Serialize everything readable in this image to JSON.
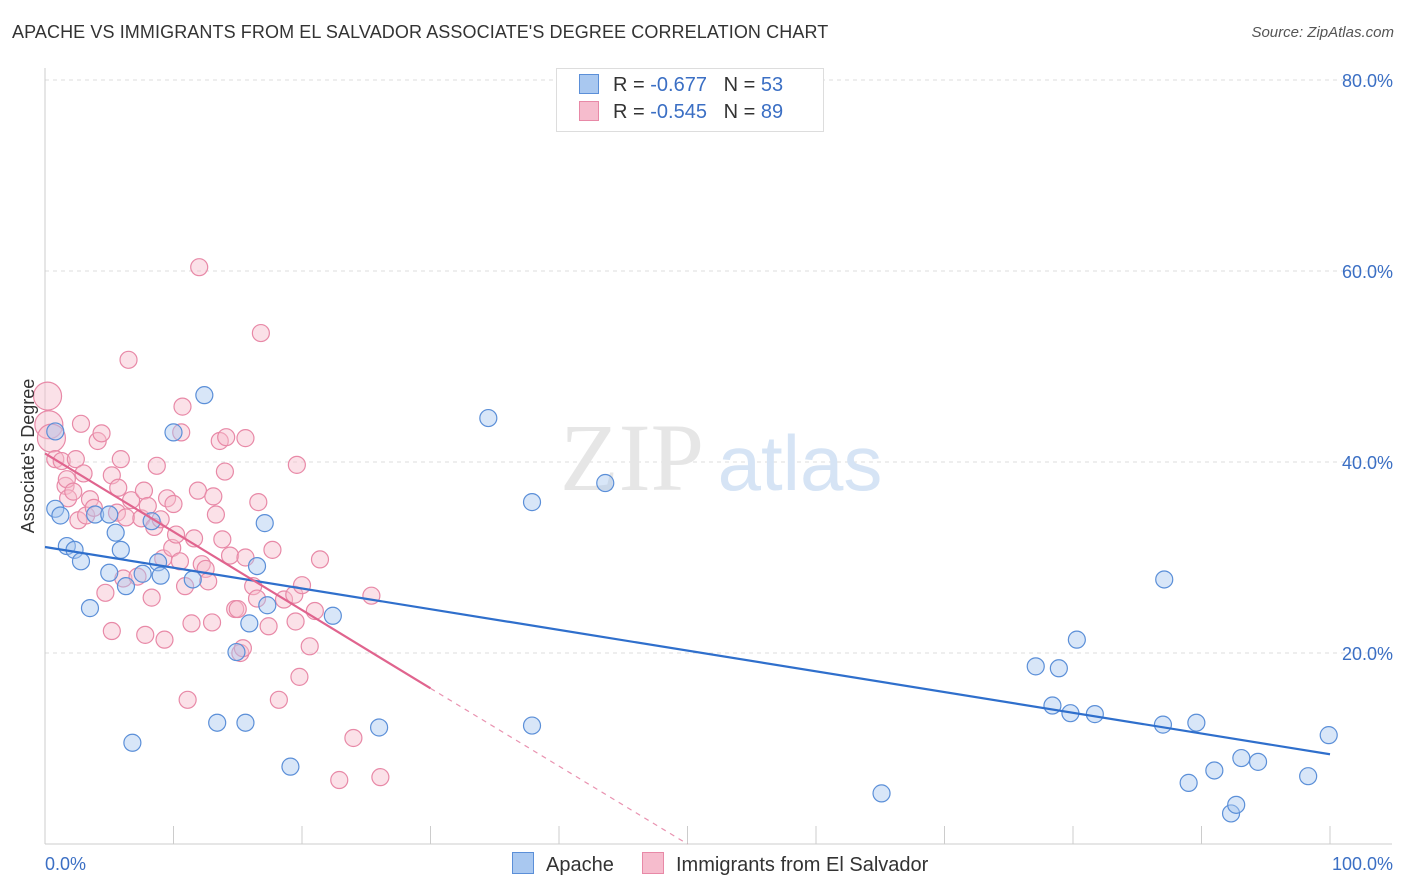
{
  "header": {
    "title": "APACHE VS IMMIGRANTS FROM EL SALVADOR ASSOCIATE'S DEGREE CORRELATION CHART",
    "source": "Source: ZipAtlas.com"
  },
  "watermark": {
    "zip": "ZIP",
    "atlas": "atlas"
  },
  "legend": {
    "rows": [
      {
        "r_label": "R =",
        "r_value": "-0.677",
        "n_label": "N =",
        "n_value": "53"
      },
      {
        "r_label": "R =",
        "r_value": "-0.545",
        "n_label": "N =",
        "n_value": "89"
      }
    ]
  },
  "colors": {
    "apache_fill": "#a9c8f0",
    "apache_stroke": "#5b8fd8",
    "apache_line": "#2f6fcc",
    "salvador_fill": "#f6bccd",
    "salvador_stroke": "#e889a7",
    "salvador_line": "#e0648e",
    "axis_label": "#3b6fc4",
    "grid": "#dddddd"
  },
  "chart_data": {
    "type": "scatter",
    "ylabel": "Associate's Degree",
    "xlim": [
      0,
      100
    ],
    "ylim": [
      0,
      80
    ],
    "x_tick_labels": [
      "0.0%",
      "100.0%"
    ],
    "y_ticks": [
      20,
      40,
      60,
      80
    ],
    "y_tick_labels": [
      "20.0%",
      "40.0%",
      "60.0%",
      "80.0%"
    ],
    "grid": "horizontal dashed",
    "legend_placement": "top-center",
    "series": [
      {
        "name": "Apache",
        "points": [
          [
            0.8,
            43.2
          ],
          [
            0.8,
            35.1
          ],
          [
            1.2,
            34.4
          ],
          [
            1.7,
            31.2
          ],
          [
            2.3,
            30.8
          ],
          [
            2.8,
            29.6
          ],
          [
            3.5,
            24.7
          ],
          [
            3.9,
            34.5
          ],
          [
            5.0,
            34.5
          ],
          [
            5.0,
            28.4
          ],
          [
            5.5,
            32.6
          ],
          [
            5.9,
            30.8
          ],
          [
            6.3,
            27.0
          ],
          [
            6.8,
            10.6
          ],
          [
            7.6,
            28.3
          ],
          [
            8.3,
            33.8
          ],
          [
            8.8,
            29.5
          ],
          [
            9.0,
            28.1
          ],
          [
            10.0,
            43.1
          ],
          [
            11.5,
            27.7
          ],
          [
            12.4,
            47.0
          ],
          [
            13.4,
            12.7
          ],
          [
            14.9,
            20.1
          ],
          [
            15.6,
            12.7
          ],
          [
            15.9,
            23.1
          ],
          [
            16.5,
            29.1
          ],
          [
            17.1,
            33.6
          ],
          [
            17.3,
            25.0
          ],
          [
            19.1,
            8.1
          ],
          [
            22.4,
            23.9
          ],
          [
            26.0,
            12.2
          ],
          [
            34.5,
            44.6
          ],
          [
            37.9,
            35.8
          ],
          [
            37.9,
            12.4
          ],
          [
            43.6,
            37.8
          ],
          [
            65.1,
            5.3
          ],
          [
            77.1,
            18.6
          ],
          [
            78.4,
            14.5
          ],
          [
            78.9,
            18.4
          ],
          [
            79.8,
            13.7
          ],
          [
            80.3,
            21.4
          ],
          [
            81.7,
            13.6
          ],
          [
            87.1,
            27.7
          ],
          [
            87.0,
            12.5
          ],
          [
            89.0,
            6.4
          ],
          [
            89.6,
            12.7
          ],
          [
            91.0,
            7.7
          ],
          [
            92.3,
            3.2
          ],
          [
            92.7,
            4.1
          ],
          [
            93.1,
            9.0
          ],
          [
            94.4,
            8.6
          ],
          [
            98.3,
            7.1
          ],
          [
            99.9,
            11.4
          ]
        ]
      },
      {
        "name": "Immigrants from El Salvador",
        "points": [
          [
            0.2,
            46.9
          ],
          [
            0.3,
            43.9
          ],
          [
            0.5,
            42.5
          ],
          [
            0.8,
            40.3
          ],
          [
            1.3,
            40.1
          ],
          [
            1.6,
            37.5
          ],
          [
            1.7,
            38.2
          ],
          [
            1.8,
            36.2
          ],
          [
            2.2,
            36.9
          ],
          [
            2.4,
            40.3
          ],
          [
            2.6,
            33.9
          ],
          [
            2.8,
            44.0
          ],
          [
            3.0,
            38.8
          ],
          [
            3.2,
            34.4
          ],
          [
            3.5,
            36.1
          ],
          [
            3.8,
            35.2
          ],
          [
            4.1,
            42.2
          ],
          [
            4.4,
            43.0
          ],
          [
            4.7,
            26.3
          ],
          [
            5.2,
            38.6
          ],
          [
            5.2,
            22.3
          ],
          [
            5.6,
            34.7
          ],
          [
            5.7,
            37.3
          ],
          [
            5.9,
            40.3
          ],
          [
            6.1,
            27.8
          ],
          [
            6.3,
            34.2
          ],
          [
            6.5,
            50.7
          ],
          [
            6.7,
            36.0
          ],
          [
            7.2,
            28.0
          ],
          [
            7.5,
            34.1
          ],
          [
            7.7,
            37.0
          ],
          [
            7.8,
            21.9
          ],
          [
            8.0,
            35.4
          ],
          [
            8.3,
            25.8
          ],
          [
            8.5,
            33.2
          ],
          [
            8.7,
            39.6
          ],
          [
            9.0,
            34.0
          ],
          [
            9.2,
            29.9
          ],
          [
            9.3,
            21.4
          ],
          [
            9.5,
            36.2
          ],
          [
            9.9,
            31.0
          ],
          [
            10.0,
            35.6
          ],
          [
            10.2,
            32.4
          ],
          [
            10.5,
            29.6
          ],
          [
            10.6,
            43.1
          ],
          [
            10.7,
            45.8
          ],
          [
            10.9,
            27.0
          ],
          [
            11.1,
            15.1
          ],
          [
            11.4,
            23.1
          ],
          [
            11.6,
            32.0
          ],
          [
            11.9,
            37.0
          ],
          [
            12.0,
            60.4
          ],
          [
            12.2,
            29.3
          ],
          [
            12.5,
            28.8
          ],
          [
            12.7,
            27.5
          ],
          [
            13.0,
            23.2
          ],
          [
            13.1,
            36.4
          ],
          [
            13.3,
            34.5
          ],
          [
            13.6,
            42.2
          ],
          [
            13.8,
            31.9
          ],
          [
            14.0,
            39.0
          ],
          [
            14.1,
            42.6
          ],
          [
            14.4,
            30.2
          ],
          [
            14.8,
            24.6
          ],
          [
            15.0,
            24.6
          ],
          [
            15.2,
            20.0
          ],
          [
            15.4,
            20.5
          ],
          [
            15.6,
            30.0
          ],
          [
            15.6,
            42.5
          ],
          [
            16.2,
            27.0
          ],
          [
            16.5,
            25.7
          ],
          [
            16.6,
            35.8
          ],
          [
            16.8,
            53.5
          ],
          [
            17.4,
            22.8
          ],
          [
            17.7,
            30.8
          ],
          [
            18.2,
            15.1
          ],
          [
            18.6,
            25.6
          ],
          [
            19.4,
            26.1
          ],
          [
            19.5,
            23.3
          ],
          [
            19.6,
            39.7
          ],
          [
            19.8,
            17.5
          ],
          [
            20.0,
            27.1
          ],
          [
            20.6,
            20.7
          ],
          [
            21.0,
            24.4
          ],
          [
            21.4,
            29.8
          ],
          [
            22.9,
            6.7
          ],
          [
            24.0,
            11.1
          ],
          [
            26.1,
            7.0
          ],
          [
            25.4,
            26.0
          ]
        ]
      }
    ],
    "trendlines": [
      {
        "series": "Apache",
        "x": [
          0,
          100
        ],
        "y": [
          31.1,
          9.4
        ]
      },
      {
        "series": "Immigrants from El Salvador",
        "x": [
          0,
          30
        ],
        "y": [
          40.9,
          16.3
        ],
        "extension": {
          "x": [
            30,
            50
          ],
          "y": [
            16.3,
            0
          ]
        }
      }
    ]
  },
  "bottom_legend": {
    "series_a": "Apache",
    "series_b": "Immigrants from El Salvador"
  }
}
